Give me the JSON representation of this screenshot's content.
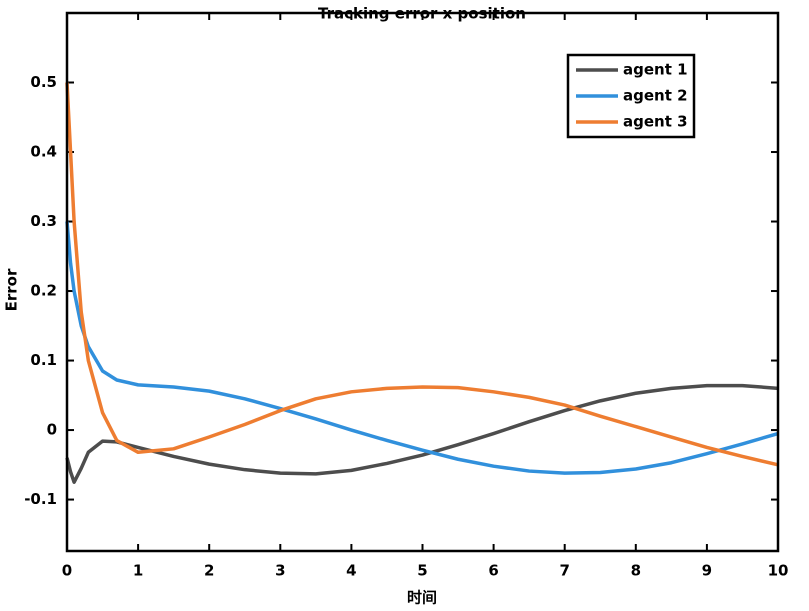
{
  "chart_data": {
    "type": "line",
    "title": "Tracking error x position",
    "x_label": "时间",
    "y_label": "Error",
    "x": [
      0,
      0.05,
      0.1,
      0.2,
      0.3,
      0.5,
      0.7,
      1,
      1.5,
      2,
      2.5,
      3,
      3.5,
      4,
      4.5,
      5,
      5.5,
      6,
      6.5,
      7,
      7.5,
      8,
      8.5,
      9,
      9.5,
      10
    ],
    "series": [
      {
        "name": "agent 1",
        "color": "#4d4d4d",
        "values": [
          -0.04,
          -0.06,
          -0.075,
          -0.055,
          -0.032,
          -0.016,
          -0.017,
          -0.025,
          -0.038,
          -0.049,
          -0.057,
          -0.062,
          -0.063,
          -0.058,
          -0.048,
          -0.036,
          -0.021,
          -0.005,
          0.012,
          0.028,
          0.042,
          0.053,
          0.06,
          0.064,
          0.064,
          0.06
        ]
      },
      {
        "name": "agent 2",
        "color": "#3190dc",
        "values": [
          0.3,
          0.24,
          0.2,
          0.15,
          0.12,
          0.085,
          0.072,
          0.065,
          0.062,
          0.056,
          0.045,
          0.031,
          0.016,
          0.0,
          -0.015,
          -0.029,
          -0.042,
          -0.052,
          -0.059,
          -0.062,
          -0.061,
          -0.056,
          -0.047,
          -0.034,
          -0.02,
          -0.005
        ]
      },
      {
        "name": "agent 3",
        "color": "#ee7d31",
        "values": [
          0.5,
          0.4,
          0.3,
          0.17,
          0.1,
          0.025,
          -0.015,
          -0.032,
          -0.027,
          -0.01,
          0.008,
          0.028,
          0.045,
          0.055,
          0.06,
          0.062,
          0.061,
          0.055,
          0.047,
          0.036,
          0.02,
          0.005,
          -0.01,
          -0.025,
          -0.038,
          -0.05
        ]
      }
    ],
    "xlim": [
      0,
      10
    ],
    "xticks": [
      0,
      1,
      2,
      3,
      4,
      5,
      6,
      7,
      8,
      9,
      10
    ],
    "ylim": [
      -0.174,
      0.6
    ],
    "yticks": [
      -0.1,
      0,
      0.1,
      0.2,
      0.3,
      0.4,
      0.5
    ],
    "legend": "upper-right"
  }
}
